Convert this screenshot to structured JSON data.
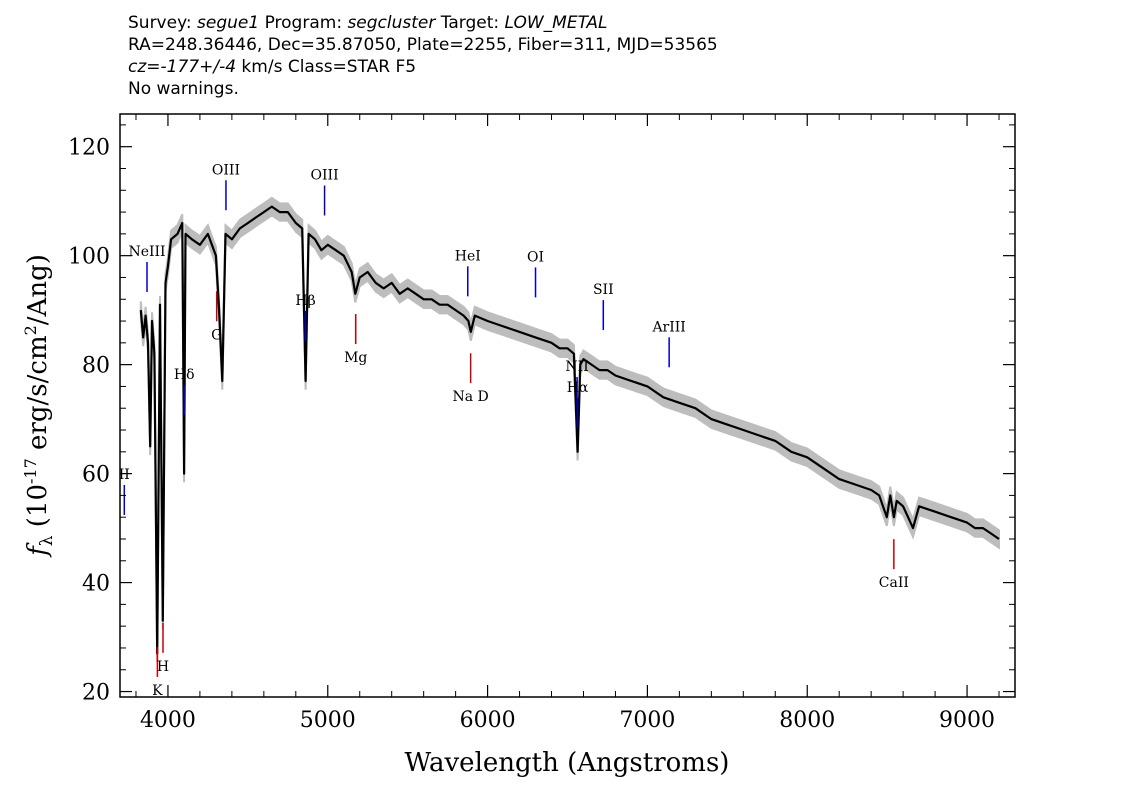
{
  "header": {
    "line1": {
      "survey_label": "Survey: ",
      "survey": "segue1",
      "program_label": " Program: ",
      "program": "segcluster",
      "target_label": " Target: ",
      "target": "LOW_METAL"
    },
    "line2": "RA=248.36446, Dec=35.87050, Plate=2255, Fiber=311, MJD=53565",
    "line3": {
      "cz": "cz=-177+/-4",
      "rest": " km/s Class=STAR F5"
    },
    "line4": "No warnings."
  },
  "chart_data": {
    "type": "line",
    "xlabel": "Wavelength (Angstroms)",
    "ylabel_pre": "f",
    "ylabel_sub": "λ",
    "ylabel_mid": " (10",
    "ylabel_exp": "-17",
    "ylabel_post1": " erg/s/cm",
    "ylabel_exp2": "2",
    "ylabel_post2": "/Ang)",
    "xlim": [
      3700,
      9300
    ],
    "ylim": [
      19,
      126
    ],
    "xticks": [
      4000,
      5000,
      6000,
      7000,
      8000,
      9000
    ],
    "yticks": [
      20,
      40,
      60,
      80,
      100,
      120
    ],
    "series": [
      {
        "color": "#000000",
        "x": [
          3830,
          3845,
          3860,
          3875,
          3889,
          3900,
          3915,
          3933,
          3950,
          3968,
          3985,
          4000,
          4020,
          4060,
          4090,
          4101,
          4110,
          4150,
          4200,
          4250,
          4300,
          4320,
          4340,
          4360,
          4400,
          4450,
          4500,
          4550,
          4600,
          4650,
          4700,
          4750,
          4800,
          4840,
          4861,
          4880,
          4920,
          4960,
          5000,
          5050,
          5100,
          5150,
          5172,
          5200,
          5250,
          5300,
          5350,
          5400,
          5450,
          5500,
          5550,
          5600,
          5650,
          5700,
          5750,
          5800,
          5850,
          5880,
          5895,
          5920,
          6000,
          6100,
          6200,
          6300,
          6400,
          6450,
          6500,
          6540,
          6563,
          6580,
          6600,
          6650,
          6700,
          6750,
          6800,
          6900,
          7000,
          7100,
          7200,
          7300,
          7400,
          7500,
          7600,
          7700,
          7800,
          7900,
          8000,
          8100,
          8200,
          8300,
          8400,
          8450,
          8498,
          8520,
          8542,
          8560,
          8600,
          8662,
          8700,
          8800,
          8900,
          9000,
          9050,
          9100,
          9150,
          9200
        ],
        "y": [
          90,
          85,
          89,
          84,
          65,
          88,
          82,
          27,
          91,
          33,
          95,
          98,
          103,
          104,
          106,
          60,
          104,
          103,
          102,
          104,
          100,
          90,
          77,
          104,
          103,
          105,
          106,
          107,
          108,
          109,
          108,
          108,
          106,
          105,
          77,
          104,
          103,
          101,
          102,
          101,
          100,
          97,
          93,
          96,
          97,
          95,
          94,
          95,
          93,
          94,
          93,
          92,
          92,
          91,
          91,
          90,
          89,
          88,
          86,
          89,
          88,
          87,
          86,
          85,
          84,
          83,
          83,
          82,
          64,
          80,
          81,
          80,
          79,
          79,
          78,
          77,
          76,
          74,
          73,
          72,
          70,
          69,
          68,
          67,
          66,
          64,
          63,
          61,
          59,
          58,
          57,
          56,
          52,
          56,
          52,
          55,
          54,
          50,
          54,
          53,
          52,
          51,
          50,
          50,
          49,
          48
        ]
      }
    ],
    "emission_lines": [
      {
        "label": "NeIII",
        "x": 3869
      },
      {
        "label": "Hδ",
        "x": 4102
      },
      {
        "label": "OIII",
        "x": 4363
      },
      {
        "label": "Hβ",
        "x": 4861
      },
      {
        "label": "OIII",
        "x": 4980
      },
      {
        "label": "HeI",
        "x": 5876
      },
      {
        "label": "OI",
        "x": 6300
      },
      {
        "label": "NII",
        "x": 6560
      },
      {
        "label": "Hα",
        "x": 6563
      },
      {
        "label": "SII",
        "x": 6724
      },
      {
        "label": "ArIII",
        "x": 7136
      },
      {
        "label": "II",
        "x": 3727
      }
    ],
    "absorption_lines": [
      {
        "label": "K",
        "x": 3934
      },
      {
        "label": "H",
        "x": 3969
      },
      {
        "label": "G",
        "x": 4305
      },
      {
        "label": "Mg",
        "x": 5175
      },
      {
        "label": "Na D",
        "x": 5894
      },
      {
        "label": "CaII",
        "x": 8542
      }
    ],
    "colors": {
      "spectrum": "#000000",
      "error_band": "#bdbdbd",
      "emission": "#0000cc",
      "absorption": "#cc0000"
    }
  }
}
